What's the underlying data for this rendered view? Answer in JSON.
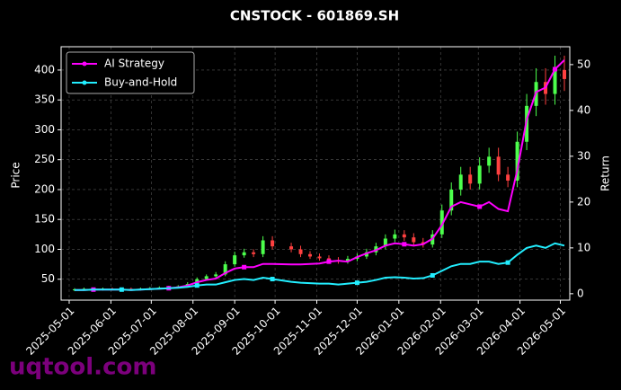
{
  "chart_data": {
    "type": "candlestick",
    "title": "CNSTOCK - 601869.SH",
    "ylabel": "Price",
    "y2label": "Return",
    "watermark": "uqtool.com",
    "x": [
      "2025-05-05",
      "2025-05-12",
      "2025-05-19",
      "2025-05-26",
      "2025-06-02",
      "2025-06-09",
      "2025-06-16",
      "2025-06-23",
      "2025-06-30",
      "2025-07-07",
      "2025-07-14",
      "2025-07-21",
      "2025-07-28",
      "2025-08-04",
      "2025-08-11",
      "2025-08-18",
      "2025-08-25",
      "2025-09-01",
      "2025-09-08",
      "2025-09-15",
      "2025-09-22",
      "2025-09-29",
      "2025-10-13",
      "2025-10-20",
      "2025-10-27",
      "2025-11-03",
      "2025-11-10",
      "2025-11-17",
      "2025-11-24",
      "2025-12-01",
      "2025-12-08",
      "2025-12-15",
      "2025-12-22",
      "2025-12-29",
      "2026-01-05",
      "2026-01-12",
      "2026-01-19",
      "2026-01-26",
      "2026-02-02",
      "2026-02-09",
      "2026-02-16",
      "2026-02-23",
      "2026-03-02",
      "2026-03-09",
      "2026-03-16",
      "2026-03-23",
      "2026-03-30",
      "2026-04-06",
      "2026-04-13",
      "2026-04-20",
      "2026-04-27",
      "2026-05-04"
    ],
    "open": [
      32,
      33,
      34,
      33,
      34,
      33,
      34,
      33,
      34,
      35,
      36,
      37,
      38,
      42,
      50,
      55,
      58,
      75,
      90,
      95,
      92,
      115,
      105,
      100,
      92,
      88,
      85,
      82,
      80,
      84,
      88,
      95,
      105,
      118,
      125,
      120,
      112,
      108,
      125,
      165,
      200,
      225,
      210,
      240,
      255,
      225,
      215,
      280,
      340,
      380,
      360,
      400
    ],
    "high": [
      35,
      36,
      36,
      36,
      36,
      36,
      36,
      36,
      37,
      38,
      39,
      40,
      45,
      53,
      58,
      62,
      80,
      96,
      101,
      100,
      122,
      122,
      111,
      106,
      97,
      93,
      90,
      87,
      89,
      93,
      101,
      111,
      125,
      133,
      132,
      127,
      119,
      132,
      175,
      212,
      238,
      238,
      254,
      270,
      270,
      238,
      297,
      360,
      403,
      403,
      424,
      424
    ],
    "low": [
      30,
      31,
      31,
      31,
      31,
      31,
      31,
      31,
      32,
      33,
      34,
      35,
      36,
      40,
      48,
      52,
      55,
      71,
      86,
      87,
      87,
      100,
      95,
      87,
      84,
      81,
      78,
      76,
      76,
      80,
      84,
      90,
      100,
      112,
      114,
      106,
      103,
      103,
      119,
      157,
      190,
      200,
      200,
      228,
      214,
      204,
      204,
      266,
      323,
      342,
      342,
      365
    ],
    "close": [
      33,
      34,
      33,
      34,
      33,
      34,
      33,
      34,
      35,
      36,
      37,
      38,
      42,
      50,
      55,
      58,
      75,
      90,
      95,
      92,
      115,
      105,
      100,
      92,
      88,
      85,
      82,
      80,
      84,
      88,
      95,
      105,
      118,
      125,
      120,
      112,
      108,
      125,
      165,
      200,
      225,
      210,
      240,
      255,
      225,
      215,
      280,
      340,
      380,
      360,
      400,
      385
    ],
    "up_color": "#4cff4c",
    "down_color": "#ff4040",
    "series": [
      {
        "name": "AI Strategy",
        "color": "#ff00ff",
        "axis": "y2",
        "values": [
          0.8,
          0.8,
          0.9,
          0.9,
          0.9,
          0.9,
          0.8,
          0.9,
          1.0,
          1.1,
          1.2,
          1.4,
          1.8,
          2.5,
          3.0,
          3.3,
          4.5,
          5.5,
          5.8,
          5.8,
          6.5,
          6.5,
          6.4,
          6.4,
          6.5,
          6.6,
          7.0,
          7.2,
          7.0,
          8.0,
          8.8,
          9.5,
          10.5,
          11.0,
          10.8,
          10.5,
          10.8,
          12.0,
          15.0,
          19.0,
          20.0,
          19.5,
          19.0,
          20.0,
          18.5,
          18.0,
          27.0,
          38.0,
          44.0,
          45.0,
          49.0,
          51.0
        ]
      },
      {
        "name": "Buy-and-Hold",
        "color": "#22eeff",
        "axis": "y2",
        "values": [
          0.8,
          0.8,
          0.9,
          0.9,
          0.9,
          0.9,
          0.8,
          0.9,
          1.0,
          1.1,
          1.2,
          1.3,
          1.5,
          1.8,
          2.0,
          2.0,
          2.5,
          3.0,
          3.2,
          3.0,
          3.5,
          3.2,
          2.6,
          2.4,
          2.3,
          2.2,
          2.2,
          2.0,
          2.2,
          2.4,
          2.6,
          3.0,
          3.5,
          3.6,
          3.5,
          3.3,
          3.4,
          4.0,
          5.0,
          6.0,
          6.5,
          6.5,
          7.0,
          7.0,
          6.5,
          6.8,
          8.5,
          10.0,
          10.5,
          10.0,
          11.0,
          10.5
        ]
      }
    ],
    "xlim": [
      "2025-04-25",
      "2026-05-08"
    ],
    "xticks": [
      "2025-05-01",
      "2025-06-01",
      "2025-07-01",
      "2025-08-01",
      "2025-09-01",
      "2025-10-01",
      "2025-11-01",
      "2025-12-01",
      "2026-01-01",
      "2026-02-01",
      "2026-03-01",
      "2026-04-01",
      "2026-05-01"
    ],
    "ylim": [
      15,
      439
    ],
    "yticks": [
      50,
      100,
      150,
      200,
      250,
      300,
      350,
      400
    ],
    "y2lim": [
      -1.4,
      53.9
    ],
    "y2ticks": [
      0,
      10,
      20,
      30,
      40,
      50
    ],
    "grid": true,
    "legend": "upper left"
  }
}
